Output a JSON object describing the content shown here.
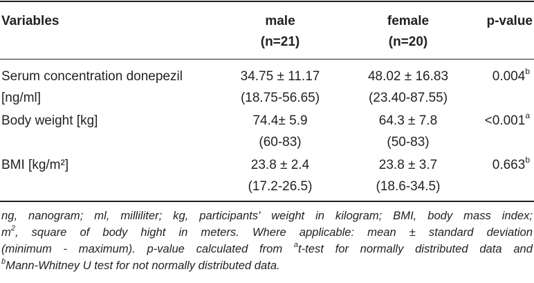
{
  "table": {
    "headers": {
      "variables": "Variables",
      "male": "male",
      "male_n": "(n=21)",
      "female": "female",
      "female_n": "(n=20)",
      "pvalue": "p-value"
    },
    "rows": [
      {
        "label_line1": "Serum concentration donepezil",
        "label_line2": "[ng/ml]",
        "male_line1": "34.75 ± 11.17",
        "male_line2": "(18.75-56.65)",
        "female_line1": "48.02 ± 16.83",
        "female_line2": "(23.40-87.55)",
        "pvalue": "0.004",
        "pvalue_sup": "b"
      },
      {
        "label_line1": "Body weight [kg]",
        "male_line1": "74.4± 5.9",
        "male_line2": "(60-83)",
        "female_line1": "64.3 ± 7.8",
        "female_line2": "(50-83)",
        "pvalue": "<0.001",
        "pvalue_sup": "a"
      },
      {
        "label_line1": "BMI [kg/m²]",
        "male_line1": "23.8 ± 2.4",
        "male_line2": "(17.2-26.5)",
        "female_line1": "23.8 ± 3.7",
        "female_line2": "(18.6-34.5)",
        "pvalue": "0.663",
        "pvalue_sup": "b"
      }
    ]
  },
  "footnote": {
    "line1": "ng, nanogram; ml, milliliter; kg, participants' weight in kilogram; BMI, body mass index;",
    "line2_m": "m",
    "line2_sup": "2",
    "line2_rest": ", square of body hight in meters. Where applicable: mean ± standard deviation",
    "line3_a": "(minimum - maximum). p-value calculated from ",
    "line3_sup": "a",
    "line3_b": "t-test for normally distributed data and",
    "line4_sup": "b",
    "line4_rest": "Mann-Whitney U test for not normally distributed data."
  }
}
